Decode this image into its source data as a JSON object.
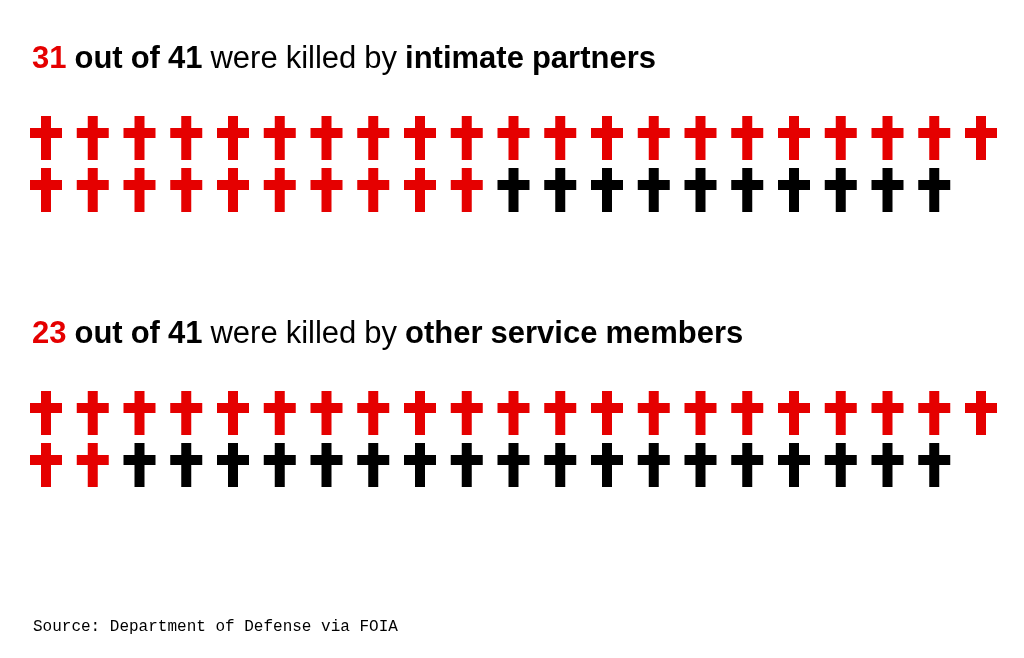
{
  "chart_data": [
    {
      "type": "other",
      "title": "31 out of 41 were killed by intimate partners",
      "values": [
        31,
        41
      ],
      "data_labels": true,
      "colors": [
        "#e50000",
        "#000000"
      ]
    },
    {
      "type": "other",
      "title": "23 out of 41 were killed by other service members",
      "values": [
        23,
        41
      ],
      "data_labels": true,
      "colors": [
        "#e50000",
        "#000000"
      ],
      "annotations": [
        "Source: Department of Defense via FOIA"
      ]
    }
  ]
}
